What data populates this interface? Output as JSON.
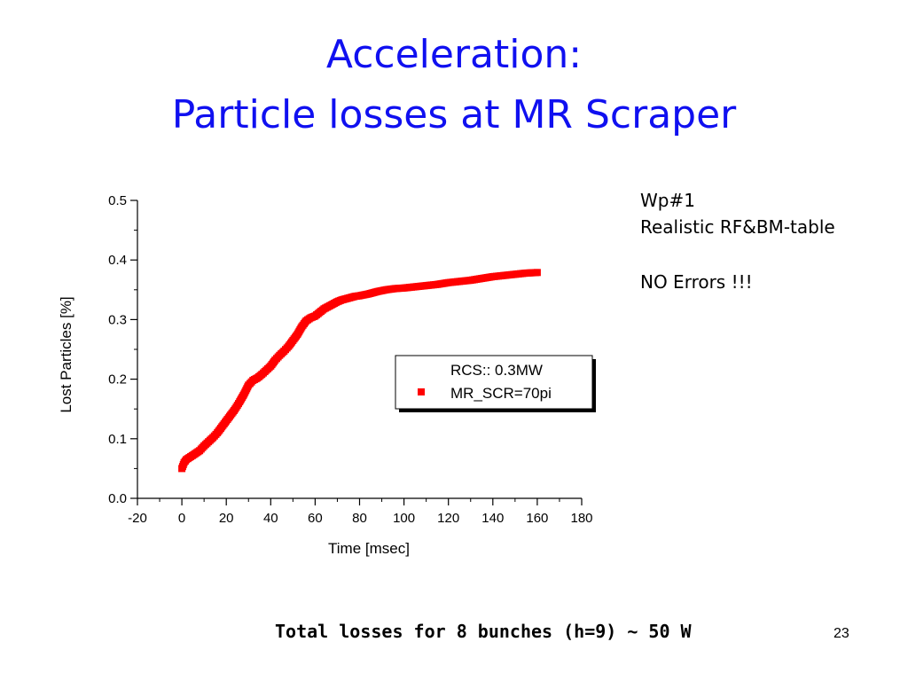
{
  "slide": {
    "title_line1": "Acceleration:",
    "title_line2": "Particle losses at MR Scraper",
    "side_line1": "Wp#1",
    "side_line2": "Realistic RF&BM-table",
    "side_line3": "NO Errors !!!",
    "footer": "Total losses for 8 bunches (h=9) ~ 50 W",
    "page_number": "23"
  },
  "chart_data": {
    "type": "scatter",
    "title": "",
    "xlabel": "Time [msec]",
    "ylabel": "Lost Particles [%]",
    "xlim": [
      -20,
      180
    ],
    "ylim": [
      0.0,
      0.5
    ],
    "x_ticks": [
      "-20",
      "0",
      "20",
      "40",
      "60",
      "80",
      "100",
      "120",
      "140",
      "160",
      "180"
    ],
    "y_ticks": [
      "0.0",
      "0.1",
      "0.2",
      "0.3",
      "0.4",
      "0.5"
    ],
    "legend_title": "RCS:: 0.3MW",
    "legend_position": "center-right",
    "series": [
      {
        "name": "MR_SCR=70pi",
        "color": "#ff0000",
        "marker": "square",
        "x": [
          0,
          1,
          2,
          4,
          6,
          8,
          10,
          12,
          14,
          16,
          18,
          20,
          22,
          24,
          26,
          28,
          30,
          32,
          34,
          36,
          38,
          40,
          42,
          44,
          46,
          48,
          50,
          52,
          54,
          56,
          58,
          60,
          62,
          64,
          66,
          68,
          70,
          72,
          74,
          76,
          78,
          80,
          84,
          88,
          92,
          96,
          100,
          105,
          110,
          115,
          120,
          125,
          130,
          135,
          140,
          145,
          150,
          155,
          160
        ],
        "values": [
          0.05,
          0.06,
          0.065,
          0.07,
          0.075,
          0.08,
          0.088,
          0.095,
          0.102,
          0.11,
          0.12,
          0.13,
          0.14,
          0.15,
          0.162,
          0.175,
          0.19,
          0.198,
          0.202,
          0.208,
          0.215,
          0.222,
          0.232,
          0.24,
          0.247,
          0.255,
          0.265,
          0.275,
          0.288,
          0.298,
          0.303,
          0.306,
          0.312,
          0.318,
          0.322,
          0.326,
          0.33,
          0.333,
          0.335,
          0.337,
          0.339,
          0.34,
          0.343,
          0.347,
          0.35,
          0.352,
          0.353,
          0.355,
          0.357,
          0.359,
          0.362,
          0.364,
          0.366,
          0.369,
          0.372,
          0.374,
          0.376,
          0.378,
          0.379
        ]
      }
    ]
  }
}
